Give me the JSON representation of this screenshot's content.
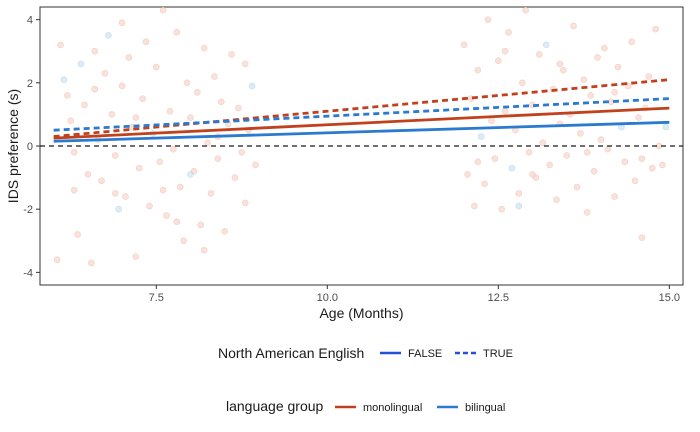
{
  "chart_data": {
    "type": "scatter",
    "xlabel": "Age (Months)",
    "ylabel": "IDS preference (s)",
    "xlim": [
      5.8,
      15.2
    ],
    "ylim": [
      -4.4,
      4.4
    ],
    "x_ticks": [
      7.5,
      10.0,
      12.5,
      15.0
    ],
    "x_tick_labels": [
      "7.5",
      "10.0",
      "12.5",
      "15.0"
    ],
    "y_ticks": [
      -4,
      -2,
      0,
      2,
      4
    ],
    "y_tick_labels": [
      "-4",
      "-2",
      "0",
      "2",
      "4"
    ],
    "grid": false,
    "reference_line": {
      "y": 0,
      "style": "dashed",
      "color": "#1a1a1a"
    },
    "colors": {
      "monolingual": "#c1411d",
      "bilingual": "#2a7ad0",
      "legend_line": "#2750d6"
    },
    "legends": [
      {
        "title": "North American English",
        "placement": "bottom",
        "entries": [
          {
            "label": "FALSE",
            "linetype": "solid"
          },
          {
            "label": "TRUE",
            "linetype": "dashed"
          }
        ]
      },
      {
        "title": "language group",
        "placement": "bottom",
        "entries": [
          {
            "label": "monolingual",
            "color": "#c1411d"
          },
          {
            "label": "bilingual",
            "color": "#2a7ad0"
          }
        ]
      }
    ],
    "series": [
      {
        "group": "monolingual",
        "north_american_english": "FALSE",
        "linetype": "solid",
        "color": "#c1411d",
        "x": [
          6.0,
          15.0
        ],
        "y": [
          0.25,
          1.2
        ]
      },
      {
        "group": "monolingual",
        "north_american_english": "TRUE",
        "linetype": "dashed",
        "color": "#c1411d",
        "x": [
          6.0,
          15.0
        ],
        "y": [
          0.3,
          2.1
        ]
      },
      {
        "group": "bilingual",
        "north_american_english": "FALSE",
        "linetype": "solid",
        "color": "#2a7ad0",
        "x": [
          6.0,
          15.0
        ],
        "y": [
          0.15,
          0.75
        ]
      },
      {
        "group": "bilingual",
        "north_american_english": "TRUE",
        "linetype": "dashed",
        "color": "#2a7ad0",
        "x": [
          6.0,
          15.0
        ],
        "y": [
          0.5,
          1.5
        ]
      }
    ],
    "points": [
      {
        "x": 6.05,
        "y": -3.6,
        "g": "m"
      },
      {
        "x": 6.1,
        "y": 3.2,
        "g": "m"
      },
      {
        "x": 6.15,
        "y": 2.1,
        "g": "b"
      },
      {
        "x": 6.2,
        "y": 1.6,
        "g": "m"
      },
      {
        "x": 6.25,
        "y": 0.8,
        "g": "m"
      },
      {
        "x": 6.3,
        "y": -1.4,
        "g": "m"
      },
      {
        "x": 6.35,
        "y": -2.8,
        "g": "m"
      },
      {
        "x": 6.4,
        "y": 2.6,
        "g": "b"
      },
      {
        "x": 6.45,
        "y": 1.3,
        "g": "m"
      },
      {
        "x": 6.5,
        "y": -0.9,
        "g": "m"
      },
      {
        "x": 6.55,
        "y": -3.7,
        "g": "m"
      },
      {
        "x": 6.6,
        "y": 3.0,
        "g": "m"
      },
      {
        "x": 6.65,
        "y": 0.2,
        "g": "m"
      },
      {
        "x": 6.7,
        "y": -1.1,
        "g": "m"
      },
      {
        "x": 6.75,
        "y": 2.3,
        "g": "m"
      },
      {
        "x": 6.8,
        "y": 3.5,
        "g": "b"
      },
      {
        "x": 6.85,
        "y": 1.0,
        "g": "m"
      },
      {
        "x": 6.9,
        "y": -0.3,
        "g": "m"
      },
      {
        "x": 6.95,
        "y": -2.0,
        "g": "b"
      },
      {
        "x": 7.0,
        "y": 1.9,
        "g": "m"
      },
      {
        "x": 7.05,
        "y": -1.6,
        "g": "m"
      },
      {
        "x": 7.1,
        "y": 2.8,
        "g": "m"
      },
      {
        "x": 7.15,
        "y": 0.6,
        "g": "m"
      },
      {
        "x": 7.2,
        "y": -3.5,
        "g": "m"
      },
      {
        "x": 7.25,
        "y": -0.7,
        "g": "m"
      },
      {
        "x": 7.3,
        "y": 1.5,
        "g": "m"
      },
      {
        "x": 7.35,
        "y": 3.3,
        "g": "m"
      },
      {
        "x": 7.4,
        "y": -1.9,
        "g": "m"
      },
      {
        "x": 7.45,
        "y": 0.4,
        "g": "b"
      },
      {
        "x": 7.5,
        "y": 2.5,
        "g": "m"
      },
      {
        "x": 7.55,
        "y": -0.5,
        "g": "m"
      },
      {
        "x": 7.6,
        "y": 4.3,
        "g": "m"
      },
      {
        "x": 7.65,
        "y": -2.2,
        "g": "m"
      },
      {
        "x": 7.7,
        "y": 1.1,
        "g": "m"
      },
      {
        "x": 7.75,
        "y": -0.1,
        "g": "m"
      },
      {
        "x": 7.8,
        "y": 3.6,
        "g": "m"
      },
      {
        "x": 7.85,
        "y": -1.3,
        "g": "m"
      },
      {
        "x": 7.9,
        "y": -3.0,
        "g": "m"
      },
      {
        "x": 7.95,
        "y": 2.0,
        "g": "m"
      },
      {
        "x": 8.0,
        "y": 0.9,
        "g": "m"
      },
      {
        "x": 8.05,
        "y": -0.8,
        "g": "m"
      },
      {
        "x": 8.1,
        "y": 1.7,
        "g": "m"
      },
      {
        "x": 8.15,
        "y": -2.5,
        "g": "m"
      },
      {
        "x": 8.2,
        "y": 3.1,
        "g": "m"
      },
      {
        "x": 8.25,
        "y": 0.1,
        "g": "m"
      },
      {
        "x": 8.3,
        "y": -1.5,
        "g": "m"
      },
      {
        "x": 8.35,
        "y": 2.2,
        "g": "m"
      },
      {
        "x": 8.4,
        "y": -0.4,
        "g": "m"
      },
      {
        "x": 8.45,
        "y": 1.4,
        "g": "m"
      },
      {
        "x": 8.5,
        "y": -2.7,
        "g": "m"
      },
      {
        "x": 8.55,
        "y": 0.7,
        "g": "m"
      },
      {
        "x": 8.6,
        "y": 2.9,
        "g": "m"
      },
      {
        "x": 8.65,
        "y": -1.0,
        "g": "m"
      },
      {
        "x": 8.7,
        "y": 1.2,
        "g": "m"
      },
      {
        "x": 8.75,
        "y": -0.2,
        "g": "m"
      },
      {
        "x": 8.8,
        "y": -1.8,
        "g": "m"
      },
      {
        "x": 8.85,
        "y": 0.5,
        "g": "m"
      },
      {
        "x": 8.9,
        "y": 1.9,
        "g": "b"
      },
      {
        "x": 8.95,
        "y": -0.6,
        "g": "m"
      },
      {
        "x": 6.3,
        "y": -0.2,
        "g": "m"
      },
      {
        "x": 6.6,
        "y": 1.8,
        "g": "m"
      },
      {
        "x": 6.9,
        "y": -1.5,
        "g": "m"
      },
      {
        "x": 7.2,
        "y": 0.9,
        "g": "m"
      },
      {
        "x": 7.6,
        "y": -1.4,
        "g": "m"
      },
      {
        "x": 8.0,
        "y": -0.9,
        "g": "b"
      },
      {
        "x": 8.4,
        "y": 0.3,
        "g": "m"
      },
      {
        "x": 8.8,
        "y": 2.6,
        "g": "m"
      },
      {
        "x": 7.0,
        "y": 3.9,
        "g": "m"
      },
      {
        "x": 7.8,
        "y": -2.4,
        "g": "m"
      },
      {
        "x": 8.2,
        "y": -3.3,
        "g": "m"
      },
      {
        "x": 12.0,
        "y": 3.2,
        "g": "m"
      },
      {
        "x": 12.05,
        "y": -0.9,
        "g": "m"
      },
      {
        "x": 12.1,
        "y": 1.5,
        "g": "m"
      },
      {
        "x": 12.15,
        "y": -1.9,
        "g": "m"
      },
      {
        "x": 12.2,
        "y": 2.4,
        "g": "m"
      },
      {
        "x": 12.25,
        "y": 0.3,
        "g": "b"
      },
      {
        "x": 12.3,
        "y": -1.2,
        "g": "m"
      },
      {
        "x": 12.35,
        "y": 4.0,
        "g": "m"
      },
      {
        "x": 12.4,
        "y": 0.8,
        "g": "m"
      },
      {
        "x": 12.45,
        "y": -0.4,
        "g": "m"
      },
      {
        "x": 12.5,
        "y": 2.7,
        "g": "m"
      },
      {
        "x": 12.55,
        "y": -2.0,
        "g": "m"
      },
      {
        "x": 12.6,
        "y": 1.1,
        "g": "m"
      },
      {
        "x": 12.65,
        "y": 3.6,
        "g": "m"
      },
      {
        "x": 12.7,
        "y": -0.7,
        "g": "b"
      },
      {
        "x": 12.75,
        "y": 0.5,
        "g": "m"
      },
      {
        "x": 12.8,
        "y": -1.5,
        "g": "m"
      },
      {
        "x": 12.85,
        "y": 2.0,
        "g": "m"
      },
      {
        "x": 12.9,
        "y": 4.3,
        "g": "m"
      },
      {
        "x": 12.95,
        "y": -0.2,
        "g": "m"
      },
      {
        "x": 13.0,
        "y": 1.3,
        "g": "m"
      },
      {
        "x": 13.05,
        "y": -1.0,
        "g": "m"
      },
      {
        "x": 13.1,
        "y": 2.9,
        "g": "m"
      },
      {
        "x": 13.15,
        "y": 0.1,
        "g": "m"
      },
      {
        "x": 13.2,
        "y": 3.2,
        "g": "b"
      },
      {
        "x": 13.25,
        "y": -0.6,
        "g": "m"
      },
      {
        "x": 13.3,
        "y": 1.8,
        "g": "m"
      },
      {
        "x": 13.35,
        "y": -1.7,
        "g": "m"
      },
      {
        "x": 13.4,
        "y": 0.7,
        "g": "m"
      },
      {
        "x": 13.45,
        "y": 2.4,
        "g": "m"
      },
      {
        "x": 13.5,
        "y": -0.3,
        "g": "m"
      },
      {
        "x": 13.55,
        "y": 1.0,
        "g": "m"
      },
      {
        "x": 13.6,
        "y": 3.8,
        "g": "m"
      },
      {
        "x": 13.65,
        "y": -1.3,
        "g": "m"
      },
      {
        "x": 13.7,
        "y": 0.4,
        "g": "m"
      },
      {
        "x": 13.75,
        "y": 2.1,
        "g": "m"
      },
      {
        "x": 13.8,
        "y": -2.1,
        "g": "m"
      },
      {
        "x": 13.85,
        "y": 1.6,
        "g": "m"
      },
      {
        "x": 13.9,
        "y": -0.8,
        "g": "m"
      },
      {
        "x": 13.95,
        "y": 2.8,
        "g": "m"
      },
      {
        "x": 14.0,
        "y": 0.2,
        "g": "m"
      },
      {
        "x": 14.05,
        "y": 3.1,
        "g": "m"
      },
      {
        "x": 14.1,
        "y": -0.1,
        "g": "m"
      },
      {
        "x": 14.15,
        "y": 1.4,
        "g": "m"
      },
      {
        "x": 14.2,
        "y": -1.6,
        "g": "m"
      },
      {
        "x": 14.25,
        "y": 2.5,
        "g": "m"
      },
      {
        "x": 14.3,
        "y": 0.6,
        "g": "b"
      },
      {
        "x": 14.35,
        "y": -0.5,
        "g": "m"
      },
      {
        "x": 14.4,
        "y": 1.9,
        "g": "m"
      },
      {
        "x": 14.45,
        "y": 3.3,
        "g": "m"
      },
      {
        "x": 14.5,
        "y": -1.1,
        "g": "m"
      },
      {
        "x": 14.55,
        "y": 0.9,
        "g": "m"
      },
      {
        "x": 14.6,
        "y": -2.9,
        "g": "m"
      },
      {
        "x": 14.65,
        "y": 1.2,
        "g": "m"
      },
      {
        "x": 14.7,
        "y": 2.2,
        "g": "m"
      },
      {
        "x": 14.75,
        "y": -0.7,
        "g": "m"
      },
      {
        "x": 14.8,
        "y": 3.7,
        "g": "m"
      },
      {
        "x": 14.85,
        "y": 0.0,
        "g": "m"
      },
      {
        "x": 14.9,
        "y": -0.6,
        "g": "m"
      },
      {
        "x": 14.95,
        "y": 0.6,
        "g": "b"
      },
      {
        "x": 12.2,
        "y": -0.5,
        "g": "m"
      },
      {
        "x": 12.6,
        "y": 3.0,
        "g": "m"
      },
      {
        "x": 13.0,
        "y": -0.9,
        "g": "m"
      },
      {
        "x": 13.4,
        "y": 2.6,
        "g": "m"
      },
      {
        "x": 13.8,
        "y": -0.2,
        "g": "m"
      },
      {
        "x": 14.2,
        "y": 1.7,
        "g": "m"
      },
      {
        "x": 14.6,
        "y": -0.4,
        "g": "m"
      },
      {
        "x": 12.8,
        "y": -1.9,
        "g": "b"
      }
    ]
  }
}
